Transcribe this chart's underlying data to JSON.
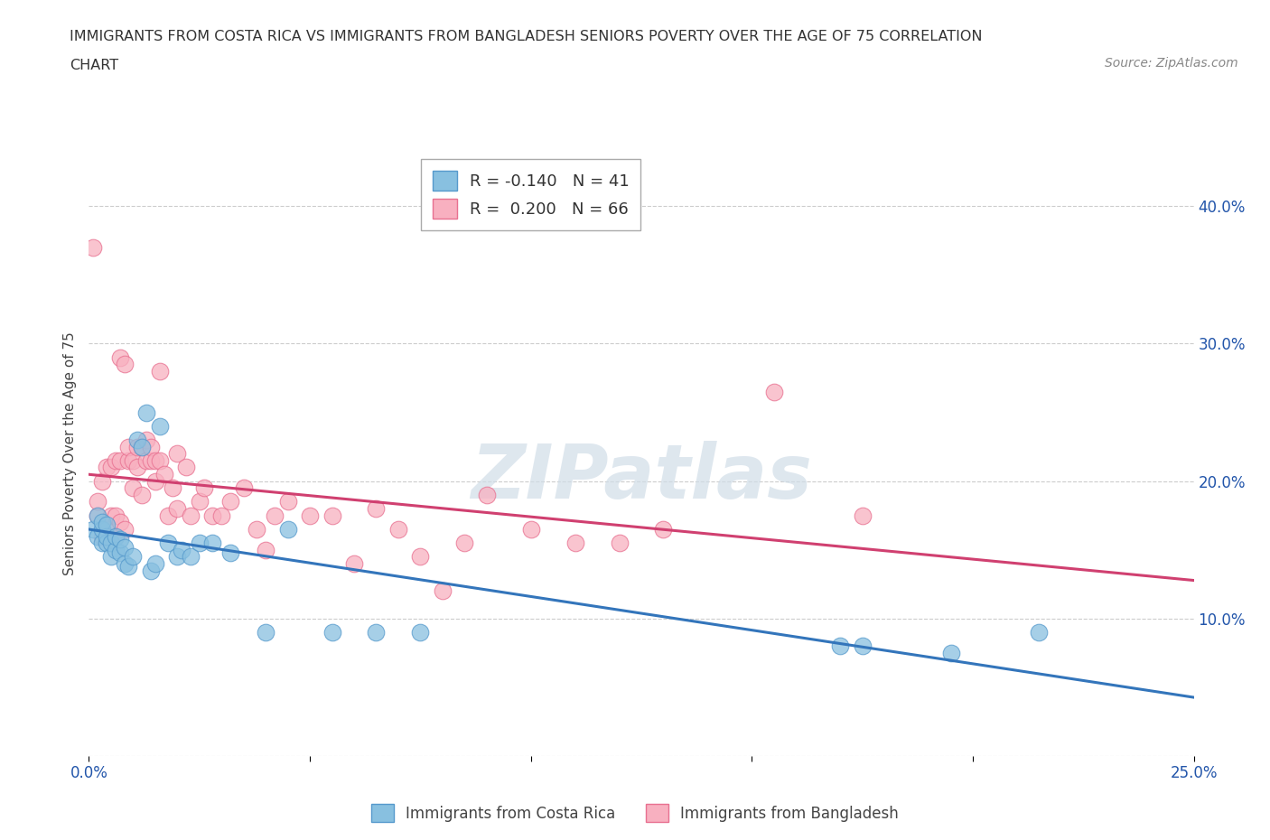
{
  "title_line1": "IMMIGRANTS FROM COSTA RICA VS IMMIGRANTS FROM BANGLADESH SENIORS POVERTY OVER THE AGE OF 75 CORRELATION",
  "title_line2": "CHART",
  "source": "Source: ZipAtlas.com",
  "ylabel": "Seniors Poverty Over the Age of 75",
  "xlim": [
    0.0,
    0.25
  ],
  "ylim": [
    0.0,
    0.44
  ],
  "xticks": [
    0.0,
    0.05,
    0.1,
    0.15,
    0.2,
    0.25
  ],
  "yticks": [
    0.0,
    0.1,
    0.2,
    0.3,
    0.4
  ],
  "ytick_labels": [
    "",
    "10.0%",
    "20.0%",
    "30.0%",
    "40.0%"
  ],
  "xtick_labels": [
    "0.0%",
    "",
    "",
    "",
    "",
    "25.0%"
  ],
  "watermark": "ZIPatlas",
  "costa_rica_color": "#88c0e0",
  "costa_rica_edge": "#5599cc",
  "bangladesh_color": "#f8b0c0",
  "bangladesh_edge": "#e87090",
  "costa_rica_R": -0.14,
  "costa_rica_N": 41,
  "bangladesh_R": 0.2,
  "bangladesh_N": 66,
  "legend_label_cr": "Immigrants from Costa Rica",
  "legend_label_bd": "Immigrants from Bangladesh",
  "costa_rica_x": [
    0.001,
    0.002,
    0.002,
    0.003,
    0.003,
    0.003,
    0.004,
    0.004,
    0.004,
    0.005,
    0.005,
    0.006,
    0.006,
    0.007,
    0.007,
    0.008,
    0.008,
    0.009,
    0.01,
    0.011,
    0.012,
    0.013,
    0.014,
    0.015,
    0.016,
    0.018,
    0.02,
    0.021,
    0.023,
    0.025,
    0.028,
    0.032,
    0.04,
    0.045,
    0.055,
    0.065,
    0.075,
    0.17,
    0.175,
    0.195,
    0.215
  ],
  "costa_rica_y": [
    0.165,
    0.16,
    0.175,
    0.155,
    0.165,
    0.17,
    0.155,
    0.16,
    0.168,
    0.145,
    0.155,
    0.15,
    0.16,
    0.148,
    0.158,
    0.14,
    0.152,
    0.138,
    0.145,
    0.23,
    0.225,
    0.25,
    0.135,
    0.14,
    0.24,
    0.155,
    0.145,
    0.15,
    0.145,
    0.155,
    0.155,
    0.148,
    0.09,
    0.165,
    0.09,
    0.09,
    0.09,
    0.08,
    0.08,
    0.075,
    0.09
  ],
  "bangladesh_x": [
    0.001,
    0.002,
    0.002,
    0.003,
    0.003,
    0.004,
    0.004,
    0.005,
    0.005,
    0.005,
    0.006,
    0.006,
    0.006,
    0.007,
    0.007,
    0.007,
    0.008,
    0.008,
    0.009,
    0.009,
    0.01,
    0.01,
    0.011,
    0.011,
    0.012,
    0.012,
    0.013,
    0.013,
    0.014,
    0.014,
    0.015,
    0.015,
    0.016,
    0.016,
    0.017,
    0.018,
    0.019,
    0.02,
    0.02,
    0.022,
    0.023,
    0.025,
    0.026,
    0.028,
    0.03,
    0.032,
    0.035,
    0.038,
    0.04,
    0.042,
    0.045,
    0.05,
    0.055,
    0.06,
    0.065,
    0.07,
    0.075,
    0.08,
    0.085,
    0.09,
    0.1,
    0.11,
    0.12,
    0.13,
    0.155,
    0.175
  ],
  "bangladesh_y": [
    0.37,
    0.175,
    0.185,
    0.16,
    0.2,
    0.165,
    0.21,
    0.155,
    0.175,
    0.21,
    0.16,
    0.175,
    0.215,
    0.17,
    0.215,
    0.29,
    0.165,
    0.285,
    0.215,
    0.225,
    0.195,
    0.215,
    0.21,
    0.225,
    0.19,
    0.225,
    0.215,
    0.23,
    0.215,
    0.225,
    0.2,
    0.215,
    0.215,
    0.28,
    0.205,
    0.175,
    0.195,
    0.18,
    0.22,
    0.21,
    0.175,
    0.185,
    0.195,
    0.175,
    0.175,
    0.185,
    0.195,
    0.165,
    0.15,
    0.175,
    0.185,
    0.175,
    0.175,
    0.14,
    0.18,
    0.165,
    0.145,
    0.12,
    0.155,
    0.19,
    0.165,
    0.155,
    0.155,
    0.165,
    0.265,
    0.175
  ]
}
